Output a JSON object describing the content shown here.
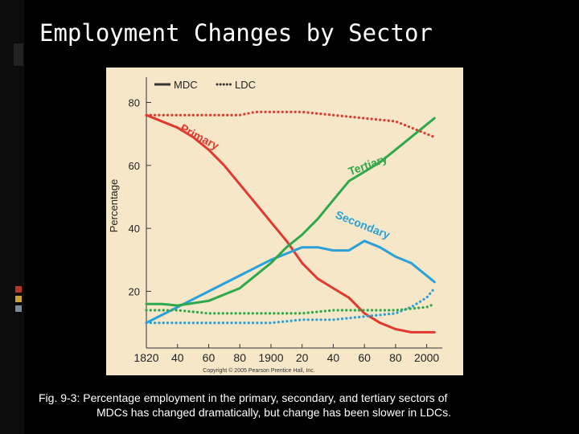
{
  "slide": {
    "title": "Employment Changes by Sector",
    "caption_line1": "Fig. 9-3: Percentage employment in the primary, secondary, and tertiary sectors of",
    "caption_line2": "MDCs has changed dramatically, but change has been slower in LDCs."
  },
  "chart_data": {
    "type": "line",
    "ylabel": "Percentage",
    "xlabel": "",
    "xlim": [
      1820,
      2010
    ],
    "ylim": [
      2,
      86
    ],
    "x_ticks": [
      1820,
      1840,
      1860,
      1880,
      1900,
      1920,
      1940,
      1960,
      1980,
      2000
    ],
    "x_tick_labels": [
      "1820",
      "40",
      "60",
      "80",
      "1900",
      "20",
      "40",
      "60",
      "80",
      "2000"
    ],
    "y_ticks": [
      20,
      40,
      60,
      80
    ],
    "y_tick_labels": [
      "20",
      "40",
      "60",
      "80"
    ],
    "grid": false,
    "legend": {
      "placement": "top-left",
      "entries": [
        {
          "label": "MDC",
          "style": "solid"
        },
        {
          "label": "LDC",
          "style": "dotted"
        }
      ]
    },
    "series": [
      {
        "name": "Primary",
        "sector": "primary",
        "group": "MDC",
        "style": "solid",
        "color": "#e03a2f",
        "x": [
          1820,
          1840,
          1850,
          1860,
          1870,
          1880,
          1890,
          1900,
          1910,
          1920,
          1930,
          1940,
          1950,
          1960,
          1970,
          1980,
          1990,
          2000,
          2005
        ],
        "y": [
          76,
          72,
          69,
          65,
          60,
          54,
          48,
          42,
          36,
          29,
          24,
          21,
          18,
          13,
          10,
          8,
          7,
          7,
          7
        ]
      },
      {
        "name": "Secondary",
        "sector": "secondary",
        "group": "MDC",
        "style": "solid",
        "color": "#2aa0d8",
        "x": [
          1820,
          1840,
          1860,
          1880,
          1900,
          1910,
          1920,
          1930,
          1940,
          1950,
          1960,
          1970,
          1980,
          1990,
          2000,
          2005
        ],
        "y": [
          10,
          15,
          20,
          25,
          30,
          32,
          34,
          34,
          33,
          33,
          36,
          34,
          31,
          29,
          25,
          23
        ]
      },
      {
        "name": "Tertiary",
        "sector": "tertiary",
        "group": "MDC",
        "style": "solid",
        "color": "#2ea84a",
        "x": [
          1820,
          1830,
          1840,
          1860,
          1880,
          1900,
          1910,
          1920,
          1930,
          1940,
          1950,
          1960,
          1970,
          1980,
          1990,
          2000,
          2005
        ],
        "y": [
          16,
          16,
          15.5,
          17,
          21,
          29,
          34,
          38,
          43,
          49,
          55,
          58,
          61,
          65,
          69,
          73,
          75
        ]
      },
      {
        "name": "Primary",
        "sector": "primary",
        "group": "LDC",
        "style": "dotted",
        "color": "#e03a2f",
        "x": [
          1820,
          1840,
          1860,
          1880,
          1890,
          1900,
          1920,
          1940,
          1960,
          1980,
          1990,
          2000,
          2005
        ],
        "y": [
          76,
          76,
          76,
          76,
          77,
          77,
          77,
          76,
          75,
          74,
          72,
          70,
          69
        ]
      },
      {
        "name": "Secondary",
        "sector": "secondary",
        "group": "LDC",
        "style": "dotted",
        "color": "#2aa0d8",
        "x": [
          1820,
          1840,
          1860,
          1880,
          1900,
          1920,
          1940,
          1960,
          1980,
          1990,
          2000,
          2005
        ],
        "y": [
          10,
          10,
          10,
          10,
          10,
          11,
          11,
          12,
          13,
          15,
          18,
          21
        ]
      },
      {
        "name": "Tertiary",
        "sector": "tertiary",
        "group": "LDC",
        "style": "dotted",
        "color": "#2ea84a",
        "x": [
          1820,
          1840,
          1860,
          1880,
          1900,
          1920,
          1940,
          1960,
          1980,
          2000,
          2005
        ],
        "y": [
          14,
          14,
          13,
          13,
          13,
          13,
          14,
          14,
          14,
          15,
          16
        ]
      }
    ],
    "annotations": [
      {
        "text": "Primary",
        "color": "#e03a2f",
        "x": 1853,
        "y": 68,
        "rotation": 28
      },
      {
        "text": "Tertiary",
        "color": "#2ea84a",
        "x": 1963,
        "y": 59,
        "rotation": -20
      },
      {
        "text": "Secondary",
        "color": "#2aa0d8",
        "x": 1958,
        "y": 40,
        "rotation": 22
      }
    ],
    "copyright": "Copyright © 2005 Pearson Prentice Hall, Inc."
  }
}
